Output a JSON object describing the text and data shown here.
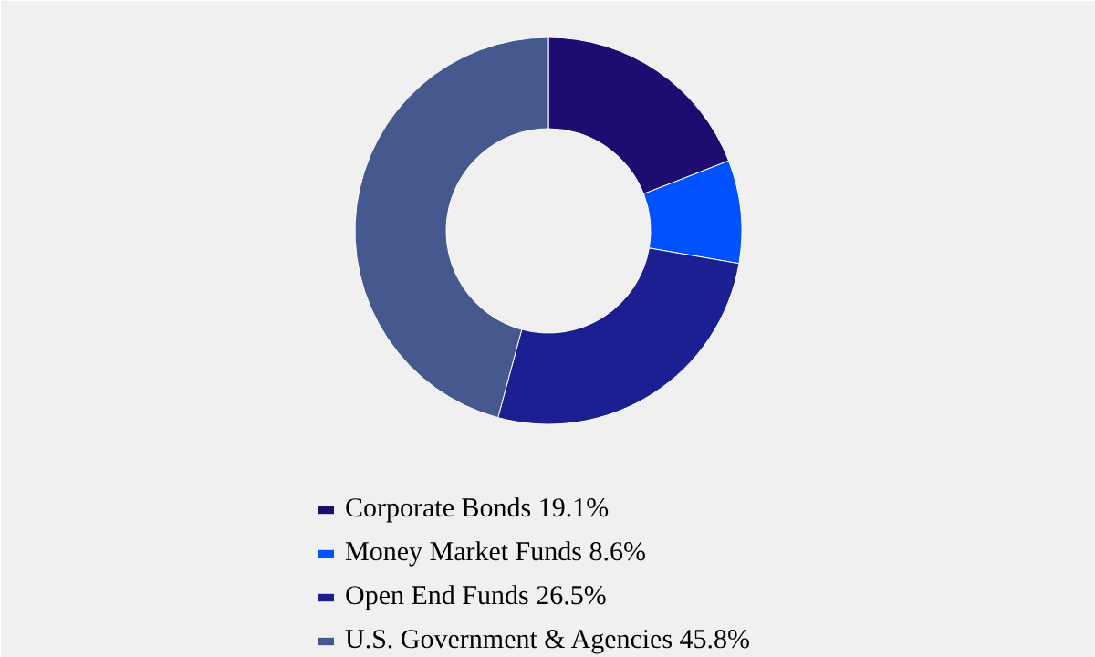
{
  "chart_data": {
    "type": "donut",
    "categories": [
      "Corporate Bonds 19.1%",
      "Money Market Funds 8.6%",
      "Open End Funds 26.5%",
      "U.S. Government & Agencies 45.8%"
    ],
    "values": [
      19.1,
      8.6,
      26.5,
      45.8
    ],
    "colors": [
      "#1f0c73",
      "#0052ff",
      "#1b1f91",
      "#46598f"
    ],
    "legend": "bottom"
  }
}
